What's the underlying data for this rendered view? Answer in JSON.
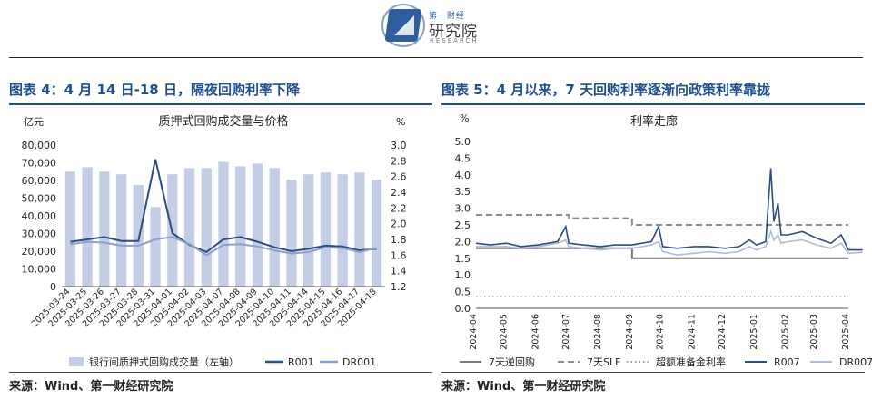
{
  "header": {
    "logo_text_small": "第一财经",
    "logo_text_main": "研究院",
    "logo_text_en": "RESEARCH"
  },
  "left_panel": {
    "title": "图表 4：4 月 14 日-18 日，隔夜回购利率下降",
    "source": "来源：Wind、第一财经研究院"
  },
  "right_panel": {
    "title": "图表 5：4 月以来，7 天回购利率逐渐向政策利率靠拢",
    "source": "来源：Wind、第一财经研究院"
  },
  "chart_data": [
    {
      "type": "bar+line",
      "title": "质押式回购成交量与价格",
      "left_unit": "亿元",
      "right_unit": "%",
      "left_ylim": [
        0,
        80000
      ],
      "left_ticks": [
        "0",
        "10,000",
        "20,000",
        "30,000",
        "40,000",
        "50,000",
        "60,000",
        "70,000",
        "80,000"
      ],
      "right_ylim": [
        1.2,
        3.0
      ],
      "right_ticks": [
        "1.2",
        "1.4",
        "1.6",
        "1.8",
        "2.0",
        "2.2",
        "2.4",
        "2.6",
        "2.8",
        "3.0"
      ],
      "categories": [
        "2025-03-24",
        "2025-03-25",
        "2025-03-26",
        "2025-03-27",
        "2025-03-28",
        "2025-03-31",
        "2025-04-01",
        "2025-04-02",
        "2025-04-03",
        "2025-04-07",
        "2025-04-08",
        "2025-04-09",
        "2025-04-10",
        "2025-04-11",
        "2025-04-14",
        "2025-04-15",
        "2025-04-16",
        "2025-04-17",
        "2025-04-18"
      ],
      "bars": {
        "name": "银行间质押式回购成交量（左轴）",
        "color": "#c3cde6",
        "values": [
          65000,
          67500,
          65000,
          63500,
          57500,
          45000,
          63500,
          67000,
          67000,
          70500,
          68000,
          69500,
          67000,
          60500,
          63500,
          64500,
          63500,
          64500,
          60500
        ]
      },
      "lines": [
        {
          "name": "R001",
          "color": "#2b4d80",
          "values": [
            1.77,
            1.8,
            1.83,
            1.78,
            1.78,
            2.82,
            1.88,
            1.73,
            1.64,
            1.8,
            1.83,
            1.77,
            1.7,
            1.65,
            1.68,
            1.72,
            1.71,
            1.66,
            1.68
          ]
        },
        {
          "name": "DR001",
          "color": "#8a9fc9",
          "values": [
            1.74,
            1.77,
            1.76,
            1.72,
            1.72,
            1.8,
            1.83,
            1.74,
            1.6,
            1.73,
            1.74,
            1.71,
            1.66,
            1.62,
            1.64,
            1.7,
            1.69,
            1.64,
            1.69
          ]
        }
      ]
    },
    {
      "type": "line",
      "title": "利率走廊",
      "unit": "%",
      "ylim": [
        0,
        5.0
      ],
      "y_ticks": [
        "0.0",
        "0.5",
        "1.0",
        "1.5",
        "2.0",
        "2.5",
        "3.0",
        "3.5",
        "4.0",
        "4.5",
        "5.0"
      ],
      "x_ticks": [
        "2024-04",
        "2024-05",
        "2024-06",
        "2024-07",
        "2024-08",
        "2024-09",
        "2024-10",
        "2024-11",
        "2024-12",
        "2025-01",
        "2025-02",
        "2025-03",
        "2025-04"
      ],
      "x_range": [
        "2024-04",
        "2025-04"
      ],
      "series": [
        {
          "name": "7天逆回购",
          "style": "solid",
          "color": "#7a7a7a",
          "points": [
            [
              "2024-04",
              1.8
            ],
            [
              "2024-09",
              1.8
            ],
            [
              "2024-09",
              1.5
            ],
            [
              "2025-04",
              1.5
            ]
          ]
        },
        {
          "name": "7天SLF",
          "style": "dashed",
          "color": "#8c8c8c",
          "points": [
            [
              "2024-04",
              2.8
            ],
            [
              "2024-07",
              2.8
            ],
            [
              "2024-07",
              2.7
            ],
            [
              "2024-09",
              2.7
            ],
            [
              "2024-09",
              2.5
            ],
            [
              "2025-04",
              2.5
            ]
          ]
        },
        {
          "name": "超额准备金利率",
          "style": "dotted",
          "color": "#9a9a9a",
          "points": [
            [
              "2024-04",
              0.35
            ],
            [
              "2025-04",
              0.35
            ]
          ]
        },
        {
          "name": "R007",
          "style": "solid",
          "color": "#2b4d80",
          "points": [
            [
              "2024-04",
              1.95
            ],
            [
              "2024-04-15",
              1.9
            ],
            [
              "2024-05",
              1.95
            ],
            [
              "2024-05-15",
              1.85
            ],
            [
              "2024-06",
              1.9
            ],
            [
              "2024-06-20",
              2.0
            ],
            [
              "2024-06-28",
              2.45
            ],
            [
              "2024-07",
              1.95
            ],
            [
              "2024-07-15",
              1.9
            ],
            [
              "2024-08",
              1.85
            ],
            [
              "2024-08-15",
              1.9
            ],
            [
              "2024-09",
              1.9
            ],
            [
              "2024-09-20",
              2.0
            ],
            [
              "2024-09-27",
              2.45
            ],
            [
              "2024-10",
              1.85
            ],
            [
              "2024-10-15",
              1.8
            ],
            [
              "2024-11",
              1.85
            ],
            [
              "2024-11-15",
              1.85
            ],
            [
              "2024-12",
              1.8
            ],
            [
              "2024-12-15",
              1.85
            ],
            [
              "2024-12-25",
              2.05
            ],
            [
              "2025-01",
              1.9
            ],
            [
              "2025-01-10",
              2.0
            ],
            [
              "2025-01-15",
              4.2
            ],
            [
              "2025-01-18",
              2.6
            ],
            [
              "2025-01-22",
              3.15
            ],
            [
              "2025-01-25",
              2.2
            ],
            [
              "2025-02",
              2.2
            ],
            [
              "2025-02-15",
              2.3
            ],
            [
              "2025-03",
              2.1
            ],
            [
              "2025-03-15",
              1.95
            ],
            [
              "2025-03-25",
              2.2
            ],
            [
              "2025-04",
              1.75
            ],
            [
              "2025-04-15",
              1.75
            ]
          ]
        },
        {
          "name": "DR007",
          "style": "solid",
          "color": "#aebbd9",
          "points": [
            [
              "2024-04",
              1.85
            ],
            [
              "2024-04-15",
              1.85
            ],
            [
              "2024-05",
              1.85
            ],
            [
              "2024-05-15",
              1.8
            ],
            [
              "2024-06",
              1.85
            ],
            [
              "2024-06-20",
              1.95
            ],
            [
              "2024-06-28",
              2.05
            ],
            [
              "2024-07",
              1.85
            ],
            [
              "2024-07-15",
              1.8
            ],
            [
              "2024-08",
              1.75
            ],
            [
              "2024-08-15",
              1.8
            ],
            [
              "2024-09",
              1.8
            ],
            [
              "2024-09-20",
              1.9
            ],
            [
              "2024-09-27",
              2.0
            ],
            [
              "2024-10",
              1.7
            ],
            [
              "2024-10-15",
              1.6
            ],
            [
              "2024-11",
              1.65
            ],
            [
              "2024-11-15",
              1.7
            ],
            [
              "2024-12",
              1.65
            ],
            [
              "2024-12-15",
              1.7
            ],
            [
              "2024-12-25",
              1.85
            ],
            [
              "2025-01",
              1.75
            ],
            [
              "2025-01-10",
              1.85
            ],
            [
              "2025-01-15",
              2.3
            ],
            [
              "2025-01-18",
              2.05
            ],
            [
              "2025-01-22",
              2.2
            ],
            [
              "2025-01-25",
              1.95
            ],
            [
              "2025-02",
              2.0
            ],
            [
              "2025-02-15",
              2.05
            ],
            [
              "2025-03",
              1.9
            ],
            [
              "2025-03-15",
              1.8
            ],
            [
              "2025-03-25",
              1.95
            ],
            [
              "2025-04",
              1.65
            ],
            [
              "2025-04-15",
              1.68
            ]
          ]
        }
      ]
    }
  ]
}
